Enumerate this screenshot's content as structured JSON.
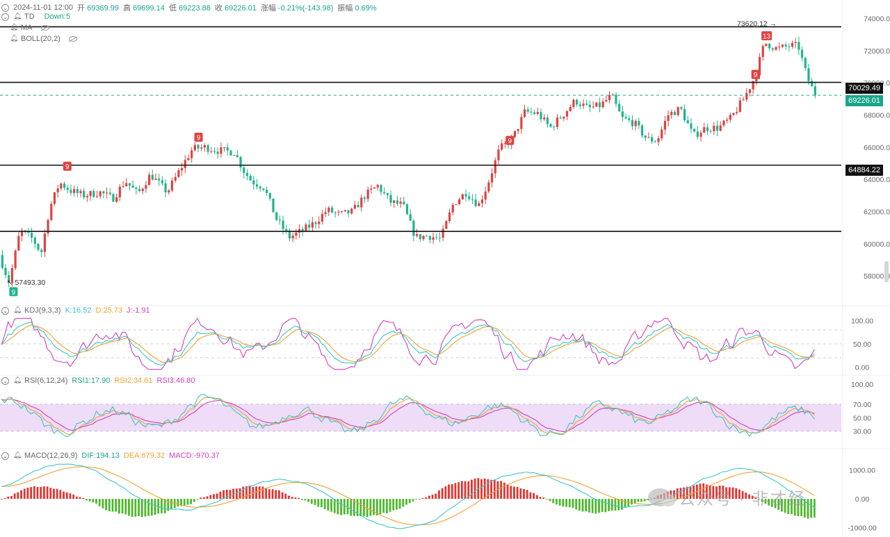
{
  "header": {
    "datetime": "2024-11-01 12:00",
    "open_label": "开",
    "open": "69369.99",
    "high_label": "高",
    "high": "69699.14",
    "low_label": "低",
    "low": "69223.88",
    "close_label": "收",
    "close": "69226.01",
    "change_label": "涨幅",
    "change": "-0.21%(-143.98)",
    "amp_label": "振幅",
    "amp": "0.69%"
  },
  "indicators": {
    "td": {
      "name": "TD",
      "value": "Down:5"
    },
    "ma": {
      "name": "MA"
    },
    "boll": {
      "name": "BOLL(20,2)"
    },
    "kdj": {
      "name": "KDJ(9,3,3)",
      "k": "K:16.52",
      "d": "D:25.73",
      "j": "J:-1.91"
    },
    "rsi": {
      "name": "RSI(6,12,24)",
      "r1": "RSI1:17.90",
      "r2": "RSI2:34.61",
      "r3": "RSI3:46.80"
    },
    "macd": {
      "name": "MACD(12,26,9)",
      "dif": "DIF:194.13",
      "dea": "DEA:679.32",
      "macd": "MACD:-970.37"
    }
  },
  "price_labels": {
    "current": "69226.01",
    "level_70029": "70029.49",
    "level_64884": "64884.22"
  },
  "watermark": "公众号 · 非才经",
  "colors": {
    "up": "#e0423f",
    "down": "#1db58f",
    "k": "#3cc6c9",
    "d": "#f0a030",
    "j": "#d040c0",
    "rsi_band": "#eedcf8"
  },
  "chart_data": {
    "type": "candlestick",
    "price_axis": {
      "ticks": [
        58000,
        60000,
        62000,
        64000,
        66000,
        68000,
        70000,
        72000,
        74000
      ],
      "tick_labels": [
        "58000.00",
        "60000.00",
        "62000.00",
        "64000.00",
        "66000.00",
        "68000.00",
        "70000.00",
        "72000.00",
        "74000.00"
      ],
      "range": [
        56500,
        74800
      ]
    },
    "horizontal_levels": [
      73480,
      70029.49,
      64884.22,
      60770
    ],
    "current_price": 69226.01,
    "annotations": [
      {
        "text": "73620.12",
        "price": 73620.12,
        "kind": "high"
      },
      {
        "text": "57493.30",
        "price": 57493.3,
        "kind": "low"
      }
    ],
    "td_markers": [
      {
        "text": "9",
        "at": 0.016,
        "price": 57000,
        "kind": "down"
      },
      {
        "text": "9",
        "at": 0.08,
        "price": 64800,
        "kind": "up"
      },
      {
        "text": "9",
        "at": 0.236,
        "price": 66600,
        "kind": "up"
      },
      {
        "text": "9",
        "at": 0.606,
        "price": 66400,
        "kind": "up"
      },
      {
        "text": "9",
        "at": 0.898,
        "price": 70500,
        "kind": "up"
      },
      {
        "text": "13",
        "at": 0.91,
        "price": 72900,
        "kind": "up"
      }
    ],
    "price_path": [
      [
        0.0,
        59300
      ],
      [
        0.012,
        57600
      ],
      [
        0.025,
        60800
      ],
      [
        0.04,
        60300
      ],
      [
        0.05,
        59400
      ],
      [
        0.06,
        62200
      ],
      [
        0.072,
        63800
      ],
      [
        0.085,
        63300
      ],
      [
        0.1,
        63000
      ],
      [
        0.12,
        63200
      ],
      [
        0.135,
        62800
      ],
      [
        0.15,
        63900
      ],
      [
        0.165,
        63100
      ],
      [
        0.18,
        64300
      ],
      [
        0.2,
        63200
      ],
      [
        0.215,
        64600
      ],
      [
        0.23,
        65900
      ],
      [
        0.245,
        66000
      ],
      [
        0.26,
        65800
      ],
      [
        0.28,
        65700
      ],
      [
        0.29,
        64600
      ],
      [
        0.3,
        63900
      ],
      [
        0.315,
        63500
      ],
      [
        0.33,
        61500
      ],
      [
        0.345,
        60400
      ],
      [
        0.36,
        60800
      ],
      [
        0.375,
        61300
      ],
      [
        0.39,
        62100
      ],
      [
        0.405,
        61800
      ],
      [
        0.42,
        62000
      ],
      [
        0.435,
        63000
      ],
      [
        0.45,
        63600
      ],
      [
        0.465,
        62600
      ],
      [
        0.48,
        62400
      ],
      [
        0.495,
        60400
      ],
      [
        0.51,
        60500
      ],
      [
        0.525,
        60300
      ],
      [
        0.54,
        62500
      ],
      [
        0.555,
        63200
      ],
      [
        0.57,
        62400
      ],
      [
        0.58,
        63600
      ],
      [
        0.595,
        65900
      ],
      [
        0.61,
        66500
      ],
      [
        0.625,
        68200
      ],
      [
        0.64,
        68100
      ],
      [
        0.655,
        67200
      ],
      [
        0.67,
        68000
      ],
      [
        0.685,
        68900
      ],
      [
        0.7,
        68400
      ],
      [
        0.715,
        68600
      ],
      [
        0.728,
        69200
      ],
      [
        0.74,
        67800
      ],
      [
        0.755,
        67500
      ],
      [
        0.77,
        66500
      ],
      [
        0.782,
        66400
      ],
      [
        0.795,
        68000
      ],
      [
        0.81,
        68400
      ],
      [
        0.825,
        66700
      ],
      [
        0.84,
        67200
      ],
      [
        0.855,
        67200
      ],
      [
        0.87,
        67800
      ],
      [
        0.885,
        69000
      ],
      [
        0.898,
        70300
      ],
      [
        0.91,
        72500
      ],
      [
        0.925,
        72100
      ],
      [
        0.94,
        72300
      ],
      [
        0.95,
        72300
      ],
      [
        0.96,
        70400
      ],
      [
        0.97,
        69226
      ]
    ],
    "kdj": {
      "ticks": [
        0,
        50,
        100
      ],
      "tick_labels": [
        "0.00",
        "50.00",
        "100.00"
      ],
      "k": 16.52,
      "d": 25.73,
      "j": -1.91
    },
    "rsi": {
      "ticks": [
        30,
        50,
        70,
        100
      ],
      "tick_labels": [
        "30.00",
        "50.00",
        "70.00",
        "100.00"
      ],
      "band": [
        30,
        70
      ],
      "rsi1": 17.9,
      "rsi2": 34.61,
      "rsi3": 46.8
    },
    "macd": {
      "ticks": [
        -1000,
        0,
        1000
      ],
      "tick_labels": [
        "-1000.00",
        "0.00",
        "1000.00"
      ],
      "dif": 194.13,
      "dea": 679.32,
      "macd": -970.37
    }
  }
}
